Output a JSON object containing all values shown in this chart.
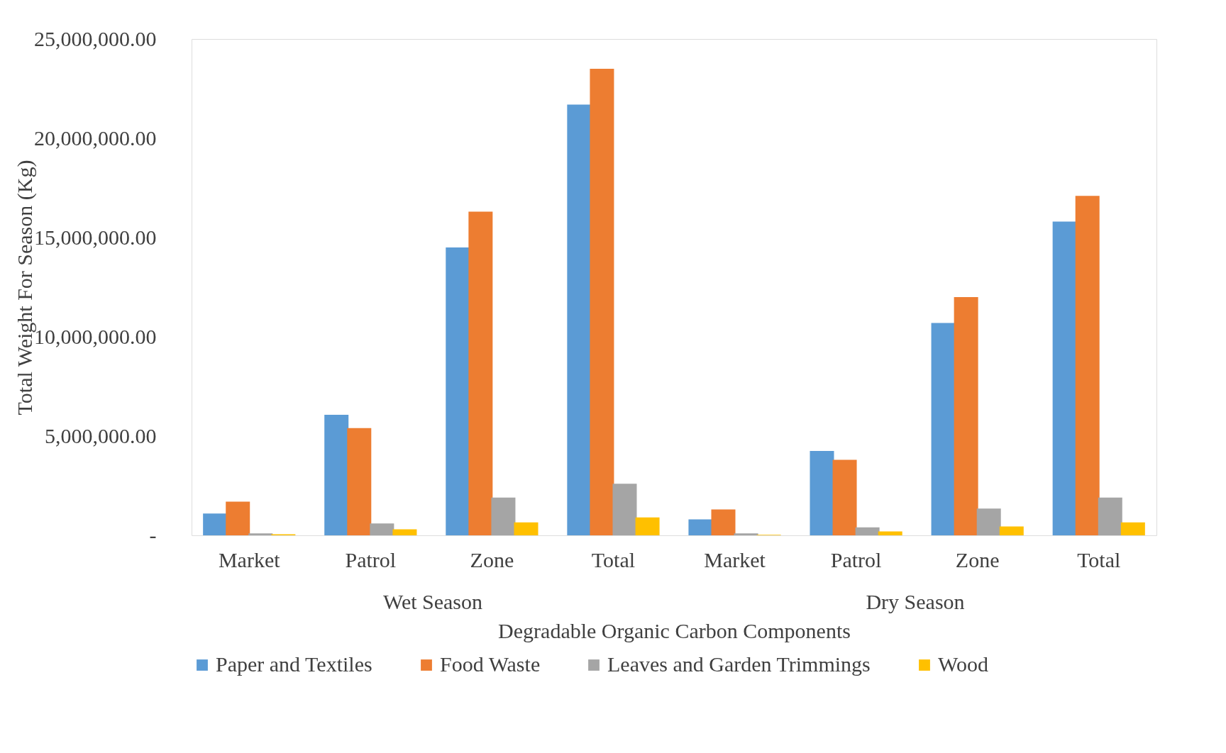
{
  "chart_data": {
    "type": "bar",
    "xlabel": "Degradable Organic Carbon Components",
    "ylabel": "Total Weight For Season (Kg)",
    "categories": [
      "Market",
      "Patrol",
      "Zone",
      "Total",
      "Market",
      "Patrol",
      "Zone",
      "Total"
    ],
    "annotations": [
      "Wet Season",
      "Dry Season"
    ],
    "series": [
      {
        "name": "Paper and Textiles",
        "color": "#5b9bd5",
        "values": [
          1100000,
          6070000,
          14500000,
          21700000,
          800000,
          4250000,
          10700000,
          15800000
        ]
      },
      {
        "name": "Food Waste",
        "color": "#ed7d31",
        "values": [
          1700000,
          5400000,
          16300000,
          23500000,
          1300000,
          3800000,
          12000000,
          17100000
        ]
      },
      {
        "name": "Leaves and Garden Trimmings",
        "color": "#a5a5a5",
        "values": [
          100000,
          600000,
          1900000,
          2600000,
          100000,
          400000,
          1350000,
          1900000
        ]
      },
      {
        "name": "Wood",
        "color": "#ffc000",
        "values": [
          50000,
          300000,
          650000,
          900000,
          30000,
          200000,
          450000,
          650000
        ]
      }
    ],
    "ylim": [
      0,
      25000000
    ],
    "yticks": [
      {
        "value": 0,
        "label": "-"
      },
      {
        "value": 5000000,
        "label": "5,000,000.00"
      },
      {
        "value": 10000000,
        "label": "10,000,000.00"
      },
      {
        "value": 15000000,
        "label": "15,000,000.00"
      },
      {
        "value": 20000000,
        "label": "20,000,000.00"
      },
      {
        "value": 25000000,
        "label": "25,000,000.00"
      }
    ],
    "grid": false,
    "legend": "bottom"
  }
}
